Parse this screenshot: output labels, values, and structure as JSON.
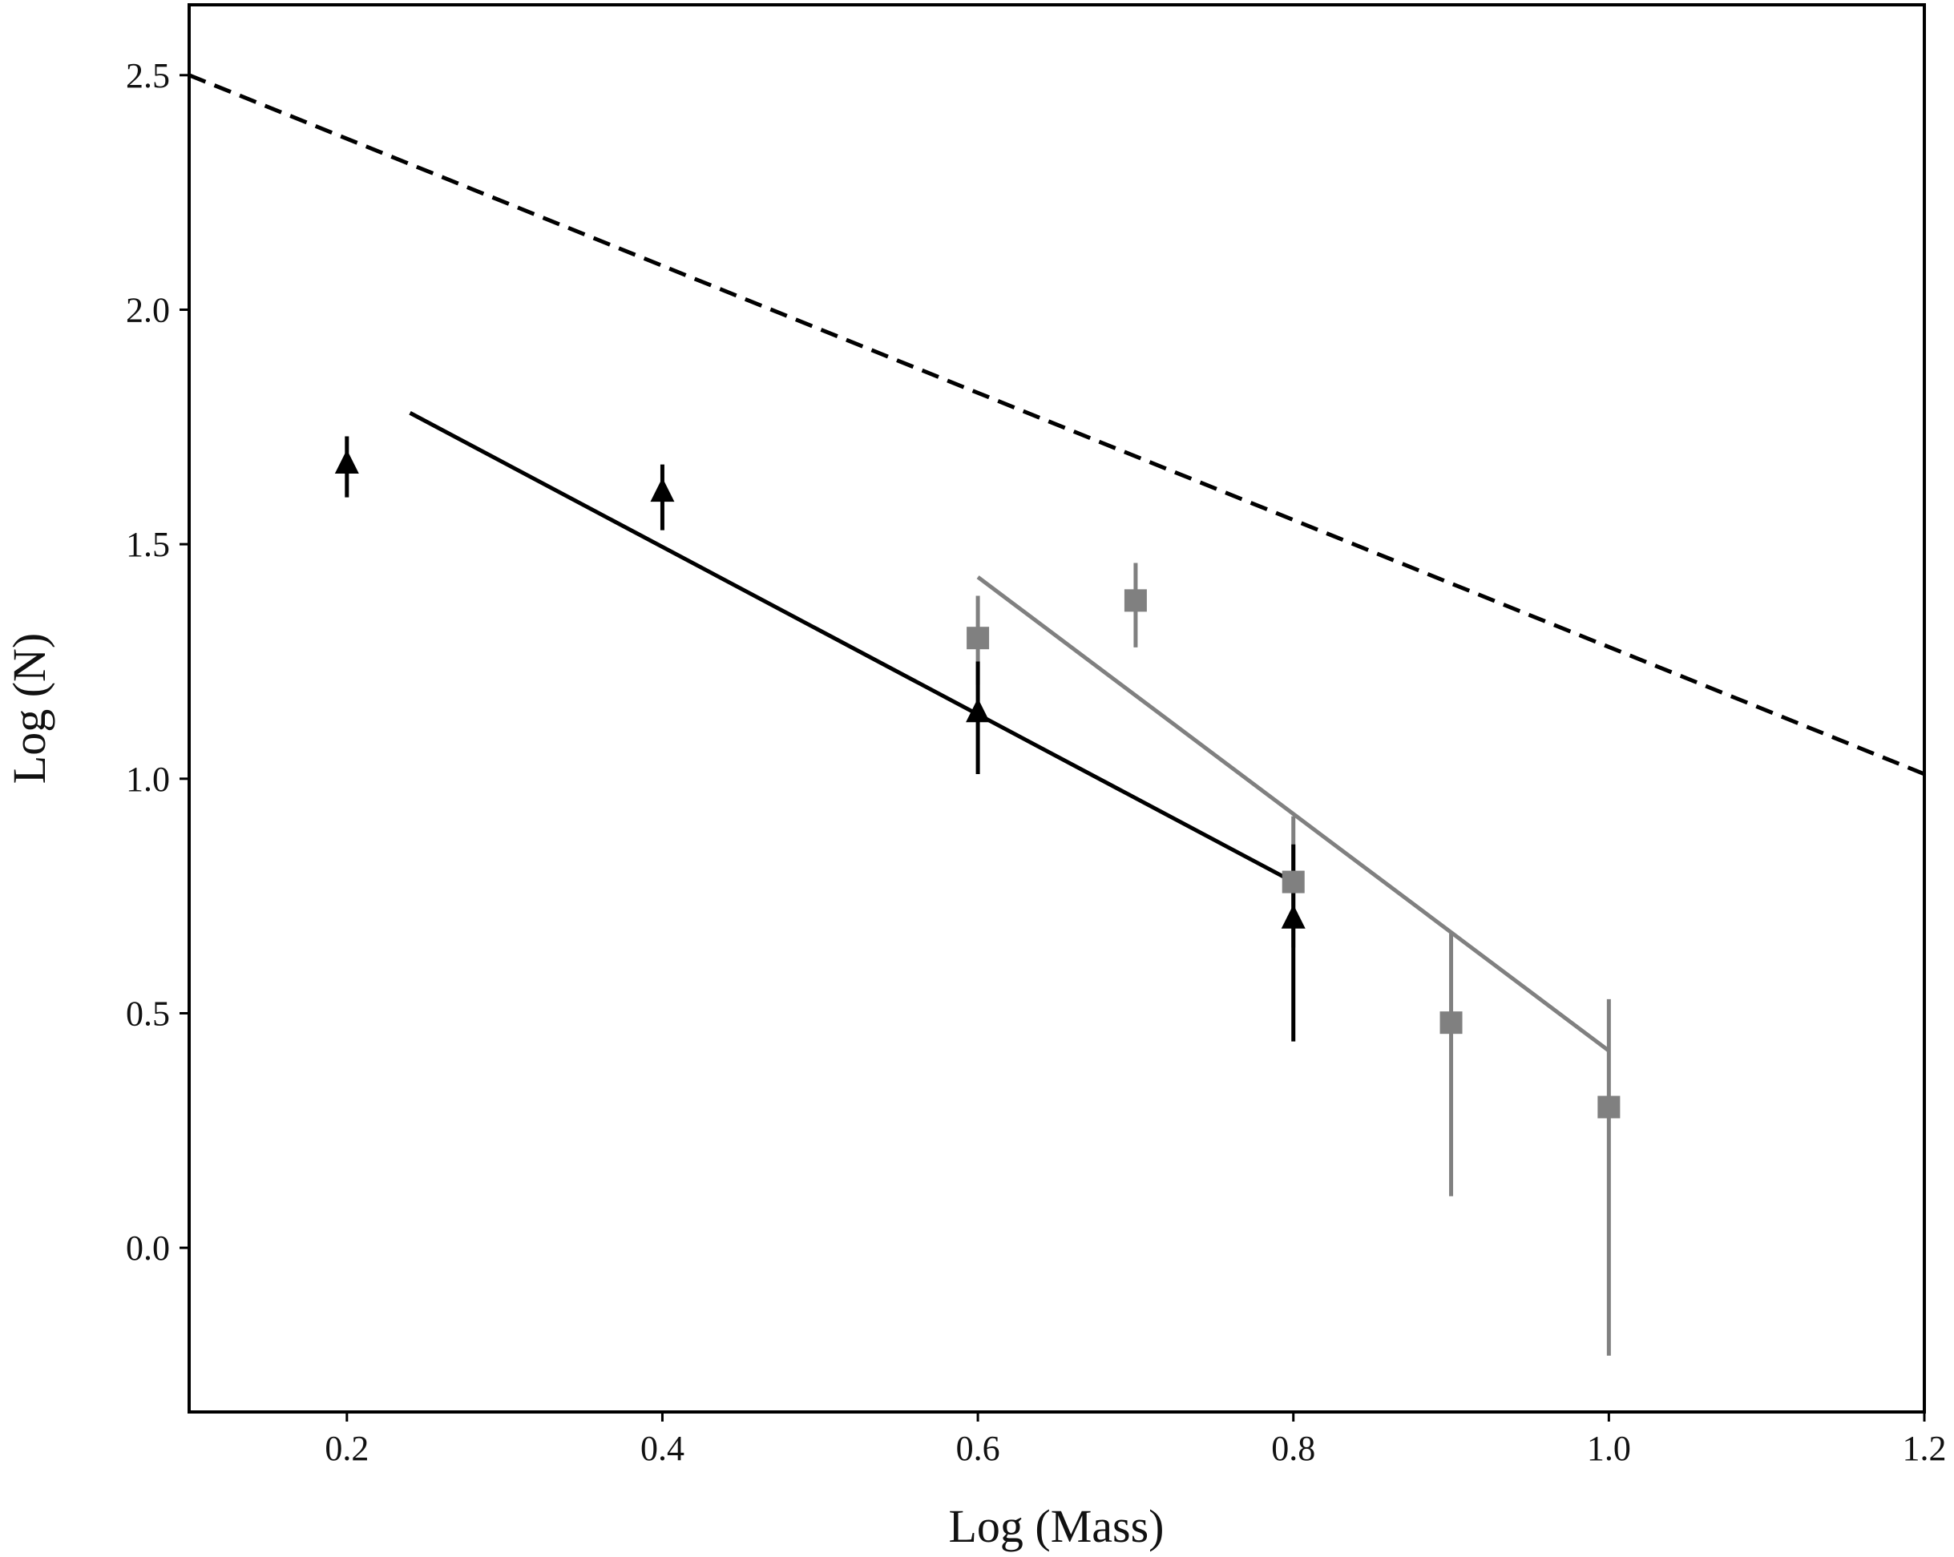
{
  "chart_data": {
    "type": "scatter",
    "title": "",
    "xlabel": "Log (Mass)",
    "ylabel": "Log (N)",
    "xlim": [
      0.1,
      1.2
    ],
    "ylim": [
      -0.35,
      2.65
    ],
    "xticks": [
      "0.2",
      "0.4",
      "0.6",
      "0.8",
      "1.0",
      "1.2"
    ],
    "yticks": [
      "0.0",
      "0.5",
      "1.0",
      "1.5",
      "2.0",
      "2.5"
    ],
    "grid": false,
    "legend": "none",
    "series": [
      {
        "marker": "triangle",
        "color": "#000000",
        "points": [
          {
            "x": 0.2,
            "y": 1.67,
            "err_low": 0.07,
            "err_high": 0.06
          },
          {
            "x": 0.4,
            "y": 1.61,
            "err_low": 0.08,
            "err_high": 0.06
          },
          {
            "x": 0.6,
            "y": 1.14,
            "err_low": 0.13,
            "err_high": 0.11
          },
          {
            "x": 0.8,
            "y": 0.7,
            "err_low": 0.26,
            "err_high": 0.16
          }
        ]
      },
      {
        "marker": "square",
        "color": "#808080",
        "points": [
          {
            "x": 0.6,
            "y": 1.3,
            "err_low": 0.1,
            "err_high": 0.09
          },
          {
            "x": 0.7,
            "y": 1.38,
            "err_low": 0.1,
            "err_high": 0.08
          },
          {
            "x": 0.8,
            "y": 0.78,
            "err_low": 0.14,
            "err_high": 0.14
          },
          {
            "x": 0.9,
            "y": 0.48,
            "err_low": 0.37,
            "err_high": 0.19
          },
          {
            "x": 1.0,
            "y": 0.3,
            "err_low": 0.53,
            "err_high": 0.23
          }
        ]
      }
    ],
    "lines": [
      {
        "style": "dashed",
        "color": "#000000",
        "x": [
          0.1,
          1.2
        ],
        "y": [
          2.5,
          1.01
        ]
      },
      {
        "style": "solid",
        "color": "#000000",
        "x": [
          0.24,
          0.8
        ],
        "y": [
          1.78,
          0.78
        ]
      },
      {
        "style": "solid",
        "color": "#808080",
        "x": [
          0.6,
          1.0
        ],
        "y": [
          1.43,
          0.42
        ]
      }
    ]
  }
}
